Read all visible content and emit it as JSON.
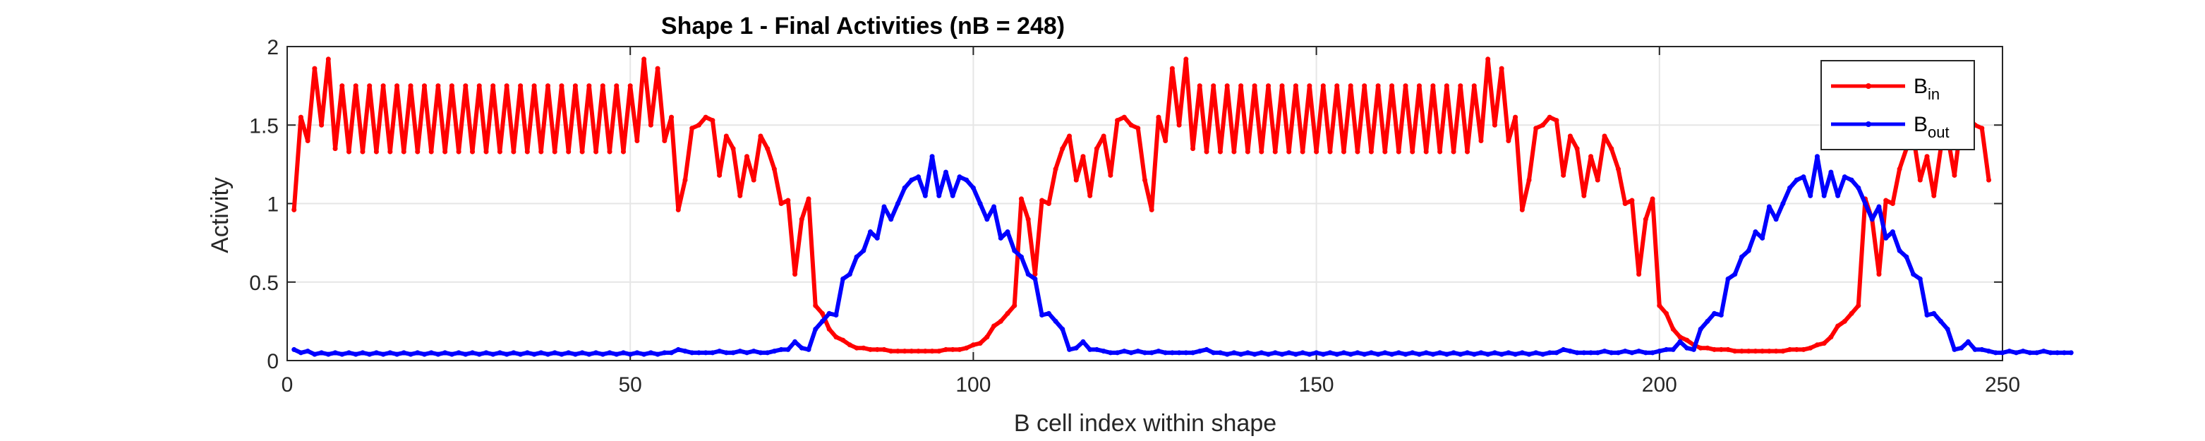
{
  "chart_data": {
    "type": "line",
    "title": "Shape 1 - Final Activities (nB = 248)",
    "xlabel": "B cell index within shape",
    "ylabel": "Activity",
    "xlim": [
      0,
      250
    ],
    "ylim": [
      0,
      2
    ],
    "xticks": [
      0,
      50,
      100,
      150,
      200,
      250
    ],
    "yticks": [
      0,
      0.5,
      1,
      1.5,
      2
    ],
    "xtick_labels": [
      "0",
      "50",
      "100",
      "150",
      "200",
      "250"
    ],
    "ytick_labels": [
      "0",
      "0.5",
      "1",
      "1.5",
      "2"
    ],
    "grid": true,
    "legend_position": "top-right",
    "series": [
      {
        "name_main": "B",
        "name_sub": "in",
        "color": "#ff0000",
        "y": [
          0.96,
          1.55,
          1.4,
          1.86,
          1.5,
          1.92,
          1.35,
          1.75,
          1.33,
          1.75,
          1.33,
          1.75,
          1.33,
          1.75,
          1.33,
          1.75,
          1.33,
          1.75,
          1.33,
          1.75,
          1.33,
          1.75,
          1.33,
          1.75,
          1.33,
          1.75,
          1.33,
          1.75,
          1.33,
          1.75,
          1.33,
          1.75,
          1.33,
          1.75,
          1.33,
          1.75,
          1.33,
          1.75,
          1.33,
          1.75,
          1.33,
          1.75,
          1.33,
          1.75,
          1.33,
          1.75,
          1.33,
          1.75,
          1.33,
          1.75,
          1.4,
          1.92,
          1.5,
          1.86,
          1.4,
          1.55,
          0.96,
          1.15,
          1.48,
          1.5,
          1.55,
          1.53,
          1.18,
          1.43,
          1.35,
          1.05,
          1.3,
          1.15,
          1.43,
          1.35,
          1.22,
          1.0,
          1.02,
          0.55,
          0.9,
          1.03,
          0.35,
          0.3,
          0.2,
          0.15,
          0.13,
          0.1,
          0.08,
          0.08,
          0.07,
          0.07,
          0.07,
          0.06,
          0.06,
          0.06,
          0.06,
          0.06,
          0.06,
          0.06,
          0.06,
          0.07,
          0.07,
          0.07,
          0.08,
          0.1,
          0.11,
          0.15,
          0.22,
          0.25,
          0.3,
          0.35,
          1.03,
          0.9,
          0.55,
          1.02,
          1.0,
          1.22,
          1.35,
          1.43,
          1.15,
          1.3,
          1.05,
          1.35,
          1.43,
          1.18,
          1.53,
          1.55,
          1.5,
          1.48,
          1.15,
          0.96,
          1.55,
          1.4,
          1.86,
          1.5,
          1.92,
          1.35,
          1.75,
          1.33,
          1.75,
          1.33,
          1.75,
          1.33,
          1.75,
          1.33,
          1.75,
          1.33,
          1.75,
          1.33,
          1.75,
          1.33,
          1.75,
          1.33,
          1.75,
          1.33,
          1.75,
          1.33,
          1.75,
          1.33,
          1.75,
          1.33,
          1.75,
          1.33,
          1.75,
          1.33,
          1.75,
          1.33,
          1.75,
          1.33,
          1.75,
          1.33,
          1.75,
          1.33,
          1.75,
          1.33,
          1.75,
          1.33,
          1.75,
          1.4,
          1.92,
          1.5,
          1.86,
          1.4,
          1.55,
          0.96,
          1.15,
          1.48,
          1.5,
          1.55,
          1.53,
          1.18,
          1.43,
          1.35,
          1.05,
          1.3,
          1.15,
          1.43,
          1.35,
          1.22,
          1.0,
          1.02,
          0.55,
          0.9,
          1.03,
          0.35,
          0.3,
          0.2,
          0.15,
          0.13,
          0.1,
          0.08,
          0.08,
          0.07,
          0.07,
          0.07,
          0.06,
          0.06,
          0.06,
          0.06,
          0.06,
          0.06,
          0.06,
          0.06,
          0.07,
          0.07,
          0.07,
          0.08,
          0.1,
          0.11,
          0.15,
          0.22,
          0.25,
          0.3,
          0.35,
          1.03,
          0.9,
          0.55,
          1.02,
          1.0,
          1.22,
          1.35,
          1.43,
          1.15,
          1.3,
          1.05,
          1.35,
          1.43,
          1.18,
          1.53,
          1.55,
          1.5,
          1.48,
          1.15
        ]
      },
      {
        "name_main": "B",
        "name_sub": "out",
        "color": "#0000ff",
        "y": [
          0.07,
          0.05,
          0.06,
          0.04,
          0.05,
          0.04,
          0.05,
          0.04,
          0.05,
          0.04,
          0.05,
          0.04,
          0.05,
          0.04,
          0.05,
          0.04,
          0.05,
          0.04,
          0.05,
          0.04,
          0.05,
          0.04,
          0.05,
          0.04,
          0.05,
          0.04,
          0.05,
          0.04,
          0.05,
          0.04,
          0.05,
          0.04,
          0.05,
          0.04,
          0.05,
          0.04,
          0.05,
          0.04,
          0.05,
          0.04,
          0.05,
          0.04,
          0.05,
          0.04,
          0.05,
          0.04,
          0.05,
          0.04,
          0.05,
          0.04,
          0.05,
          0.04,
          0.05,
          0.04,
          0.05,
          0.05,
          0.07,
          0.06,
          0.05,
          0.05,
          0.05,
          0.05,
          0.06,
          0.05,
          0.05,
          0.06,
          0.05,
          0.06,
          0.05,
          0.05,
          0.06,
          0.07,
          0.07,
          0.12,
          0.08,
          0.07,
          0.2,
          0.25,
          0.3,
          0.29,
          0.52,
          0.55,
          0.66,
          0.7,
          0.82,
          0.78,
          0.98,
          0.9,
          1.0,
          1.1,
          1.15,
          1.17,
          1.05,
          1.3,
          1.05,
          1.2,
          1.05,
          1.17,
          1.15,
          1.1,
          1.0,
          0.9,
          0.98,
          0.78,
          0.82,
          0.7,
          0.66,
          0.55,
          0.52,
          0.29,
          0.3,
          0.25,
          0.2,
          0.07,
          0.08,
          0.12,
          0.07,
          0.07,
          0.06,
          0.05,
          0.05,
          0.06,
          0.05,
          0.06,
          0.05,
          0.05,
          0.06,
          0.05,
          0.05,
          0.05,
          0.05,
          0.05,
          0.06,
          0.07,
          0.05,
          0.05,
          0.04,
          0.05,
          0.04,
          0.05,
          0.04,
          0.05,
          0.04,
          0.05,
          0.04,
          0.05,
          0.04,
          0.05,
          0.04,
          0.05,
          0.04,
          0.05,
          0.04,
          0.05,
          0.04,
          0.05,
          0.04,
          0.05,
          0.04,
          0.05,
          0.04,
          0.05,
          0.04,
          0.05,
          0.04,
          0.05,
          0.04,
          0.05,
          0.04,
          0.05,
          0.04,
          0.05,
          0.04,
          0.05,
          0.04,
          0.05,
          0.04,
          0.05,
          0.04,
          0.05,
          0.04,
          0.05,
          0.04,
          0.05,
          0.05,
          0.07,
          0.06,
          0.05,
          0.05,
          0.05,
          0.05,
          0.06,
          0.05,
          0.05,
          0.06,
          0.05,
          0.06,
          0.05,
          0.05,
          0.06,
          0.07,
          0.07,
          0.12,
          0.08,
          0.07,
          0.2,
          0.25,
          0.3,
          0.29,
          0.52,
          0.55,
          0.66,
          0.7,
          0.82,
          0.78,
          0.98,
          0.9,
          1.0,
          1.1,
          1.15,
          1.17,
          1.05,
          1.3,
          1.05,
          1.2,
          1.05,
          1.17,
          1.15,
          1.1,
          1.0,
          0.9,
          0.98,
          0.78,
          0.82,
          0.7,
          0.66,
          0.55,
          0.52,
          0.29,
          0.3,
          0.25,
          0.2,
          0.07,
          0.08,
          0.12,
          0.07,
          0.07,
          0.06,
          0.05,
          0.05,
          0.06,
          0.05,
          0.06,
          0.05,
          0.05,
          0.06,
          0.05,
          0.05,
          0.05,
          0.05
        ]
      }
    ]
  }
}
